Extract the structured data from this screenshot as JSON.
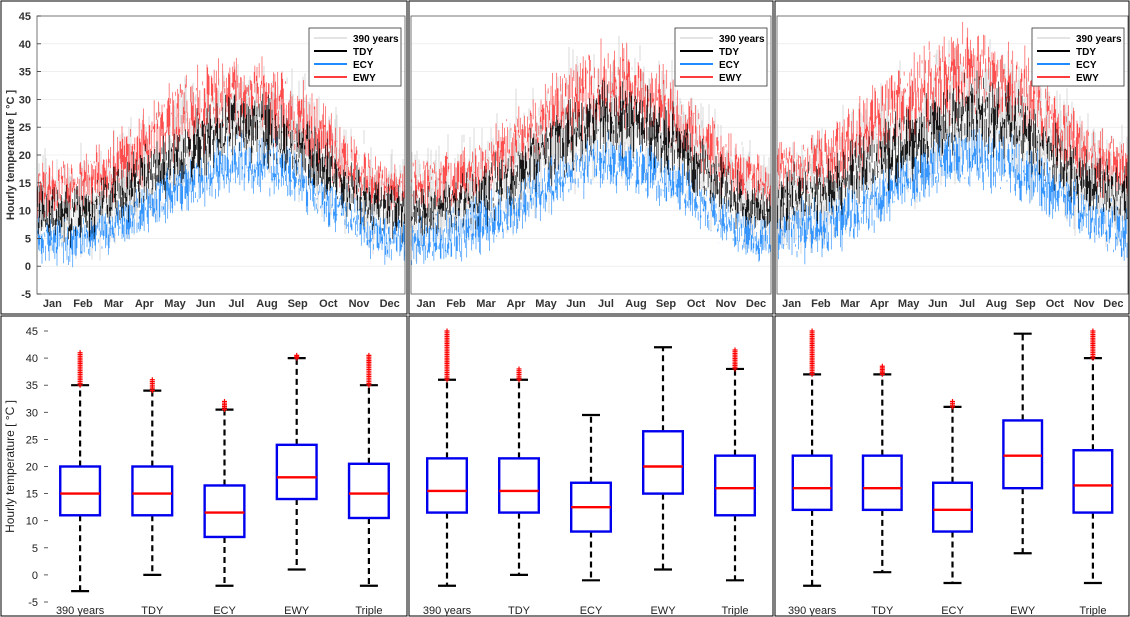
{
  "colors": {
    "s390": "#c8c8c8",
    "tdy": "#000000",
    "ecy": "#1f8bff",
    "ewy": "#ff3b3b",
    "box": "#0000ee",
    "median": "#ff0000",
    "outlier": "#ff0000"
  },
  "chart_data": [
    {
      "type": "line",
      "panel": "top-1",
      "ylabel": "Hourly temperature [ °C ]",
      "ylim": [
        -5,
        45
      ],
      "yticks": [
        -5,
        0,
        5,
        10,
        15,
        20,
        25,
        30,
        35,
        40,
        45
      ],
      "x": [
        "Jan",
        "Feb",
        "Mar",
        "Apr",
        "May",
        "Jun",
        "Jul",
        "Aug",
        "Sep",
        "Oct",
        "Nov",
        "Dec"
      ],
      "legend": {
        "placement": "top-right",
        "entries": [
          "390 years",
          "TDY",
          "ECY",
          "EWY"
        ]
      },
      "series": [
        {
          "name": "390 years",
          "key": "s390",
          "min": [
            -2,
            -1,
            0,
            3,
            8,
            12,
            15,
            14,
            10,
            5,
            1,
            -1
          ],
          "max": [
            22,
            22,
            25,
            29,
            34,
            39,
            40,
            39,
            36,
            30,
            25,
            22
          ]
        },
        {
          "name": "TDY",
          "key": "tdy",
          "min": [
            3,
            3,
            5,
            8,
            12,
            15,
            18,
            17,
            14,
            9,
            5,
            3
          ],
          "max": [
            16,
            16,
            18,
            22,
            26,
            30,
            33,
            32,
            28,
            22,
            17,
            15
          ]
        },
        {
          "name": "ECY",
          "key": "ecy",
          "min": [
            -1,
            -1,
            1,
            4,
            8,
            10,
            12,
            12,
            9,
            5,
            1,
            -1
          ],
          "max": [
            10,
            10,
            12,
            15,
            19,
            22,
            25,
            24,
            21,
            16,
            11,
            9
          ]
        },
        {
          "name": "EWY",
          "key": "ewy",
          "min": [
            8,
            8,
            10,
            13,
            17,
            20,
            22,
            21,
            18,
            13,
            9,
            8
          ],
          "max": [
            20,
            20,
            23,
            29,
            35,
            38,
            40,
            38,
            34,
            27,
            21,
            19
          ]
        }
      ]
    },
    {
      "type": "line",
      "panel": "top-2",
      "ylim": [
        -5,
        45
      ],
      "x": [
        "Jan",
        "Feb",
        "Mar",
        "Apr",
        "May",
        "Jun",
        "Jul",
        "Aug",
        "Sep",
        "Oct",
        "Nov",
        "Dec"
      ],
      "legend": {
        "placement": "top-right",
        "entries": [
          "390 years",
          "TDY",
          "ECY",
          "EWY"
        ]
      },
      "series": [
        {
          "name": "390 years",
          "key": "s390",
          "min": [
            -2,
            -1,
            0,
            3,
            7,
            11,
            14,
            13,
            9,
            5,
            1,
            -1
          ],
          "max": [
            24,
            25,
            28,
            32,
            37,
            41,
            43,
            42,
            39,
            32,
            27,
            24
          ]
        },
        {
          "name": "TDY",
          "key": "tdy",
          "min": [
            4,
            5,
            6,
            9,
            13,
            16,
            19,
            18,
            15,
            10,
            6,
            4
          ],
          "max": [
            15,
            16,
            19,
            23,
            27,
            32,
            35,
            34,
            30,
            23,
            18,
            15
          ]
        },
        {
          "name": "ECY",
          "key": "ecy",
          "min": [
            -1,
            -1,
            1,
            4,
            8,
            11,
            13,
            12,
            9,
            5,
            1,
            -1
          ],
          "max": [
            10,
            11,
            13,
            16,
            20,
            23,
            25,
            24,
            21,
            16,
            12,
            10
          ]
        },
        {
          "name": "EWY",
          "key": "ewy",
          "min": [
            9,
            9,
            11,
            14,
            18,
            21,
            23,
            22,
            19,
            14,
            10,
            9
          ],
          "max": [
            20,
            21,
            24,
            28,
            34,
            40,
            42,
            40,
            36,
            29,
            23,
            20
          ]
        }
      ]
    },
    {
      "type": "line",
      "panel": "top-3",
      "ylim": [
        -5,
        45
      ],
      "x": [
        "Jan",
        "Feb",
        "Mar",
        "Apr",
        "May",
        "Jun",
        "Jul",
        "Aug",
        "Sep",
        "Oct",
        "Nov",
        "Dec"
      ],
      "legend": {
        "placement": "top-right",
        "entries": [
          "390 years",
          "TDY",
          "ECY",
          "EWY"
        ]
      },
      "series": [
        {
          "name": "390 years",
          "key": "s390",
          "min": [
            -1,
            0,
            1,
            4,
            8,
            12,
            15,
            14,
            10,
            6,
            2,
            0
          ],
          "max": [
            26,
            27,
            30,
            34,
            38,
            42,
            45,
            44,
            40,
            34,
            29,
            26
          ]
        },
        {
          "name": "TDY",
          "key": "tdy",
          "min": [
            5,
            6,
            8,
            11,
            14,
            17,
            20,
            19,
            16,
            11,
            7,
            5
          ],
          "max": [
            19,
            20,
            23,
            26,
            30,
            33,
            36,
            35,
            31,
            25,
            21,
            19
          ]
        },
        {
          "name": "ECY",
          "key": "ecy",
          "min": [
            0,
            0,
            2,
            5,
            9,
            11,
            13,
            12,
            10,
            6,
            2,
            0
          ],
          "max": [
            12,
            13,
            15,
            18,
            22,
            25,
            27,
            26,
            23,
            18,
            14,
            12
          ]
        },
        {
          "name": "EWY",
          "key": "ewy",
          "min": [
            11,
            11,
            13,
            16,
            20,
            23,
            26,
            25,
            21,
            16,
            12,
            11
          ],
          "max": [
            24,
            25,
            29,
            34,
            39,
            43,
            45,
            43,
            39,
            32,
            26,
            24
          ]
        }
      ]
    },
    {
      "type": "box",
      "panel": "bottom-1",
      "ylabel": "Hourly temperature [ °C ]",
      "ylim": [
        -5,
        45
      ],
      "yticks": [
        -5,
        0,
        5,
        10,
        15,
        20,
        25,
        30,
        35,
        40,
        45
      ],
      "categories": [
        "390 years",
        "TDY",
        "ECY",
        "EWY",
        "Triple"
      ],
      "boxes": [
        {
          "whisker_low": -3,
          "q1": 11,
          "median": 15,
          "q3": 20,
          "whisker_high": 35,
          "outliers_top": 41
        },
        {
          "whisker_low": 0,
          "q1": 11,
          "median": 15,
          "q3": 20,
          "whisker_high": 34,
          "outliers_top": 36
        },
        {
          "whisker_low": -2,
          "q1": 7,
          "median": 11.5,
          "q3": 16.5,
          "whisker_high": 30.5,
          "outliers_top": 32
        },
        {
          "whisker_low": 1,
          "q1": 14,
          "median": 18,
          "q3": 24,
          "whisker_high": 40,
          "outliers_top": 40.5
        },
        {
          "whisker_low": -2,
          "q1": 10.5,
          "median": 15,
          "q3": 20.5,
          "whisker_high": 35,
          "outliers_top": 40.5
        }
      ]
    },
    {
      "type": "box",
      "panel": "bottom-2",
      "ylim": [
        -5,
        45
      ],
      "categories": [
        "390 years",
        "TDY",
        "ECY",
        "EWY",
        "Triple"
      ],
      "boxes": [
        {
          "whisker_low": -2,
          "q1": 11.5,
          "median": 15.5,
          "q3": 21.5,
          "whisker_high": 36,
          "outliers_top": 45
        },
        {
          "whisker_low": 0,
          "q1": 11.5,
          "median": 15.5,
          "q3": 21.5,
          "whisker_high": 36,
          "outliers_top": 38
        },
        {
          "whisker_low": -1,
          "q1": 8,
          "median": 12.5,
          "q3": 17,
          "whisker_high": 29.5,
          "outliers_top": null
        },
        {
          "whisker_low": 1,
          "q1": 15,
          "median": 20,
          "q3": 26.5,
          "whisker_high": 42,
          "outliers_top": null
        },
        {
          "whisker_low": -1,
          "q1": 11,
          "median": 16,
          "q3": 22,
          "whisker_high": 38,
          "outliers_top": 41.5
        }
      ]
    },
    {
      "type": "box",
      "panel": "bottom-3",
      "ylim": [
        -5,
        45
      ],
      "categories": [
        "390 years",
        "TDY",
        "ECY",
        "EWY",
        "Triple"
      ],
      "boxes": [
        {
          "whisker_low": -2,
          "q1": 12,
          "median": 16,
          "q3": 22,
          "whisker_high": 37,
          "outliers_top": 45
        },
        {
          "whisker_low": 0.5,
          "q1": 12,
          "median": 16,
          "q3": 22,
          "whisker_high": 37,
          "outliers_top": 38.5
        },
        {
          "whisker_low": -1.5,
          "q1": 8,
          "median": 12,
          "q3": 17,
          "whisker_high": 31,
          "outliers_top": 32
        },
        {
          "whisker_low": 4,
          "q1": 16,
          "median": 22,
          "q3": 28.5,
          "whisker_high": 44.5,
          "outliers_top": null
        },
        {
          "whisker_low": -1.5,
          "q1": 11.5,
          "median": 16.5,
          "q3": 23,
          "whisker_high": 40,
          "outliers_top": 45
        }
      ]
    }
  ]
}
